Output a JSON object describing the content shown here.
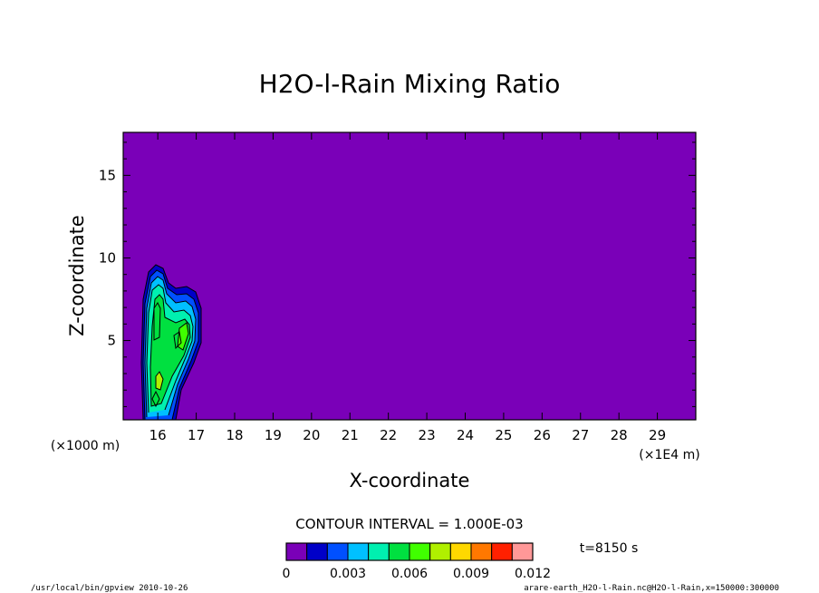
{
  "chart_data": {
    "type": "contour",
    "title": "H2O-l-Rain Mixing Ratio",
    "xlabel": "X-coordinate",
    "ylabel": "Z-coordinate",
    "x_unit_left": "(×1000 m)",
    "x_unit_right": "(×1E4 m)",
    "xlim": [
      15.1,
      30.0
    ],
    "ylim": [
      0.2,
      17.6
    ],
    "x_ticks": [
      "16",
      "17",
      "18",
      "19",
      "20",
      "21",
      "22",
      "23",
      "24",
      "25",
      "26",
      "27",
      "28",
      "29"
    ],
    "x_tick_values": [
      16,
      17,
      18,
      19,
      20,
      21,
      22,
      23,
      24,
      25,
      26,
      27,
      28,
      29
    ],
    "y_ticks": [
      "5",
      "10",
      "15"
    ],
    "y_tick_values": [
      5,
      10,
      15
    ],
    "contour_interval_text": "CONTOUR INTERVAL = 1.000E-03",
    "time_text": "t=8150 s",
    "colorbar": {
      "colors": [
        "#7a00b8",
        "#0000c8",
        "#0050ff",
        "#00c0ff",
        "#00f0b0",
        "#00e040",
        "#40ff00",
        "#b0f000",
        "#ffd800",
        "#ff7800",
        "#ff2000",
        "#ff9898"
      ],
      "tick_labels": [
        "0",
        "0.003",
        "0.006",
        "0.009",
        "0.012"
      ],
      "tick_values": [
        0,
        0.003,
        0.006,
        0.009,
        0.012
      ],
      "range": [
        0,
        0.012
      ]
    },
    "background_color": "#7a00b8",
    "features": [
      {
        "x": 16.0,
        "z": 5.0,
        "peak": 0.006
      },
      {
        "x": 16.6,
        "z": 5.5,
        "peak": 0.007
      }
    ]
  },
  "footer": {
    "left": "/usr/local/bin/gpview  2010-10-26",
    "right": "arare-earth_H2O-l-Rain.nc@H2O-l-Rain,x=150000:300000"
  }
}
